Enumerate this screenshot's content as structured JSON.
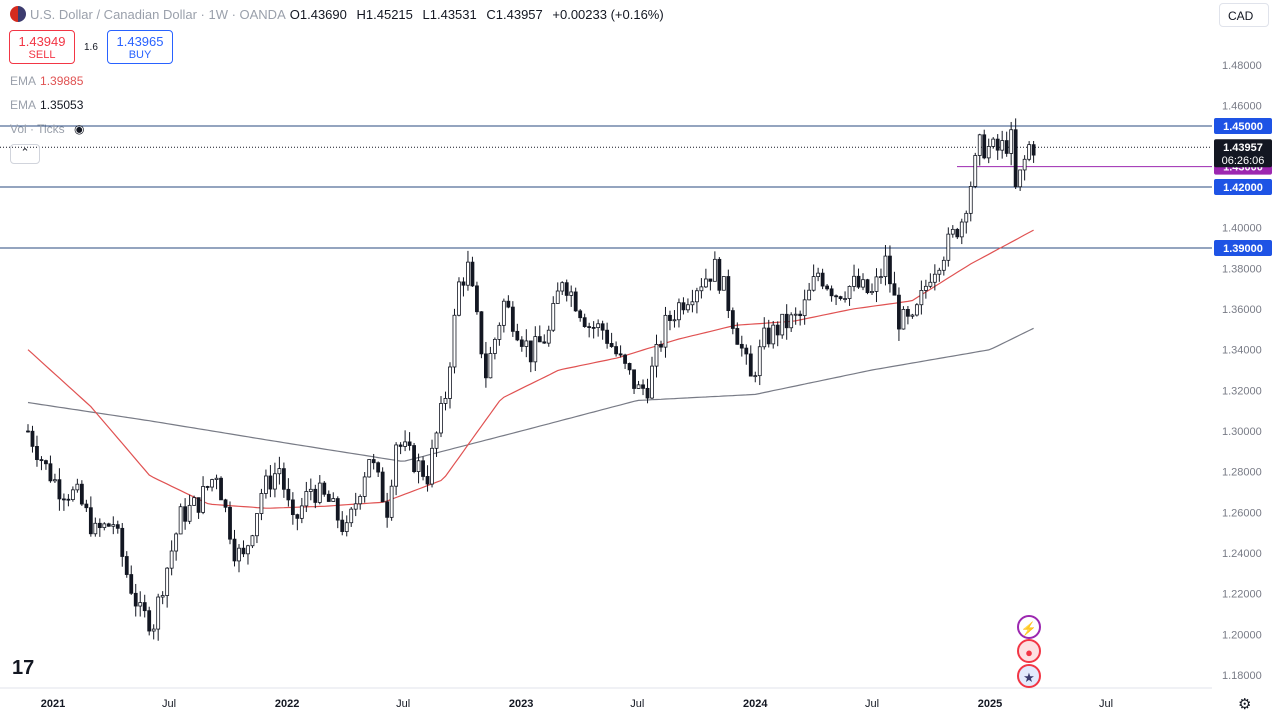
{
  "header": {
    "title": "U.S. Dollar / Canadian Dollar · 1W · OANDA",
    "open_label": "O",
    "open": "1.43690",
    "high_label": "H",
    "high": "1.45215",
    "low_label": "L",
    "low": "1.43531",
    "close_label": "C",
    "close": "1.43957",
    "change": "+0.00233 (+0.16%)"
  },
  "trade": {
    "sell_price": "1.43949",
    "sell_label": "SELL",
    "spread": "1.6",
    "buy_price": "1.43965",
    "buy_label": "BUY"
  },
  "indicators": {
    "ema1_label": "EMA",
    "ema1_value": "1.39885",
    "ema2_label": "EMA",
    "ema2_value": "1.35053",
    "vol_label": "Vol · Ticks"
  },
  "currency_select": "CAD",
  "countdown": "06:26:06",
  "colors": {
    "up": "#131722",
    "down": "#131722",
    "ema_fast": "#e05252",
    "ema_slow": "#787b86",
    "hline": "#2a4a7f",
    "magenta": "#9c27b0",
    "label_blue": "#1e53e5"
  },
  "chart_data": {
    "type": "candlestick",
    "symbol": "USD/CAD",
    "timeframe": "1W",
    "ylim": [
      1.17,
      1.49
    ],
    "y_ticks": [
      "1.48000",
      "1.46000",
      "1.44000",
      "1.42000",
      "1.40000",
      "1.38000",
      "1.36000",
      "1.34000",
      "1.32000",
      "1.30000",
      "1.28000",
      "1.26000",
      "1.24000",
      "1.22000",
      "1.20000",
      "1.18000"
    ],
    "x_ticks": [
      "2021",
      "Jul",
      "2022",
      "Jul",
      "2023",
      "Jul",
      "2024",
      "Jul",
      "2025",
      "Jul"
    ],
    "x_tick_dates": [
      "2021-01-01",
      "2021-07-01",
      "2022-01-01",
      "2022-07-01",
      "2023-01-01",
      "2023-07-01",
      "2024-01-01",
      "2024-07-01",
      "2025-01-01",
      "2025-07-01"
    ],
    "xlim": [
      "2020-11-23",
      "2025-09-22"
    ],
    "close_path": [
      [
        "2020-11-23",
        1.3
      ],
      [
        "2020-12-21",
        1.282
      ],
      [
        "2021-01-11",
        1.272
      ],
      [
        "2021-02-08",
        1.268
      ],
      [
        "2021-03-08",
        1.25
      ],
      [
        "2021-04-05",
        1.255
      ],
      [
        "2021-04-26",
        1.23
      ],
      [
        "2021-05-17",
        1.21
      ],
      [
        "2021-06-07",
        1.206
      ],
      [
        "2021-06-21",
        1.225
      ],
      [
        "2021-07-19",
        1.258
      ],
      [
        "2021-08-16",
        1.265
      ],
      [
        "2021-09-13",
        1.28
      ],
      [
        "2021-10-11",
        1.242
      ],
      [
        "2021-10-25",
        1.237
      ],
      [
        "2021-11-22",
        1.27
      ],
      [
        "2021-12-20",
        1.282
      ],
      [
        "2022-01-10",
        1.253
      ],
      [
        "2022-02-07",
        1.272
      ],
      [
        "2022-03-07",
        1.265
      ],
      [
        "2022-04-04",
        1.25
      ],
      [
        "2022-05-09",
        1.288
      ],
      [
        "2022-06-06",
        1.262
      ],
      [
        "2022-06-20",
        1.295
      ],
      [
        "2022-07-18",
        1.285
      ],
      [
        "2022-08-08",
        1.278
      ],
      [
        "2022-09-05",
        1.318
      ],
      [
        "2022-09-26",
        1.372
      ],
      [
        "2022-10-10",
        1.38
      ],
      [
        "2022-11-07",
        1.328
      ],
      [
        "2022-12-05",
        1.363
      ],
      [
        "2022-12-19",
        1.355
      ],
      [
        "2023-01-16",
        1.338
      ],
      [
        "2023-02-13",
        1.348
      ],
      [
        "2023-03-06",
        1.376
      ],
      [
        "2023-03-20",
        1.368
      ],
      [
        "2023-04-17",
        1.352
      ],
      [
        "2023-05-08",
        1.35
      ],
      [
        "2023-06-05",
        1.334
      ],
      [
        "2023-07-03",
        1.32
      ],
      [
        "2023-07-17",
        1.322
      ],
      [
        "2023-08-14",
        1.352
      ],
      [
        "2023-09-04",
        1.362
      ],
      [
        "2023-10-02",
        1.372
      ],
      [
        "2023-10-30",
        1.38
      ],
      [
        "2023-11-13",
        1.37
      ],
      [
        "2023-12-11",
        1.34
      ],
      [
        "2023-12-25",
        1.325
      ],
      [
        "2024-01-15",
        1.345
      ],
      [
        "2024-02-12",
        1.352
      ],
      [
        "2024-03-11",
        1.356
      ],
      [
        "2024-04-08",
        1.378
      ],
      [
        "2024-05-06",
        1.368
      ],
      [
        "2024-06-03",
        1.372
      ],
      [
        "2024-07-01",
        1.367
      ],
      [
        "2024-07-22",
        1.383
      ],
      [
        "2024-08-12",
        1.355
      ],
      [
        "2024-09-02",
        1.352
      ],
      [
        "2024-09-30",
        1.378
      ],
      [
        "2024-10-28",
        1.392
      ],
      [
        "2024-11-18",
        1.404
      ],
      [
        "2024-12-16",
        1.44
      ],
      [
        "2025-01-13",
        1.438
      ],
      [
        "2025-02-03",
        1.443
      ],
      [
        "2025-02-10",
        1.418
      ],
      [
        "2025-03-03",
        1.44
      ],
      [
        "2025-03-10",
        1.44
      ]
    ],
    "ema_fast_path": [
      [
        "2020-11-23",
        1.34
      ],
      [
        "2021-03-01",
        1.312
      ],
      [
        "2021-06-01",
        1.278
      ],
      [
        "2021-09-01",
        1.264
      ],
      [
        "2021-12-01",
        1.262
      ],
      [
        "2022-03-01",
        1.263
      ],
      [
        "2022-06-01",
        1.265
      ],
      [
        "2022-09-01",
        1.276
      ],
      [
        "2022-12-01",
        1.316
      ],
      [
        "2023-03-01",
        1.33
      ],
      [
        "2023-06-01",
        1.336
      ],
      [
        "2023-09-01",
        1.345
      ],
      [
        "2023-12-01",
        1.352
      ],
      [
        "2024-03-01",
        1.354
      ],
      [
        "2024-06-01",
        1.36
      ],
      [
        "2024-09-01",
        1.364
      ],
      [
        "2024-12-01",
        1.382
      ],
      [
        "2025-03-10",
        1.3988
      ]
    ],
    "ema_slow_path": [
      [
        "2020-11-23",
        1.314
      ],
      [
        "2021-06-01",
        1.305
      ],
      [
        "2022-01-01",
        1.294
      ],
      [
        "2022-07-01",
        1.285
      ],
      [
        "2023-01-01",
        1.3
      ],
      [
        "2023-07-01",
        1.315
      ],
      [
        "2024-01-01",
        1.318
      ],
      [
        "2024-07-01",
        1.33
      ],
      [
        "2025-01-01",
        1.34
      ],
      [
        "2025-03-10",
        1.3505
      ]
    ],
    "horizontal_levels": [
      {
        "price": 1.45,
        "label": "1.45000",
        "color": "#1e53e5"
      },
      {
        "price": 1.43,
        "label": "1.43000",
        "color": "#9c27b0"
      },
      {
        "price": 1.42,
        "label": "1.42000",
        "color": "#1e53e5"
      },
      {
        "price": 1.39,
        "label": "1.39000",
        "color": "#1e53e5"
      }
    ],
    "last_price": {
      "price": 1.43957,
      "label": "1.43957"
    }
  }
}
